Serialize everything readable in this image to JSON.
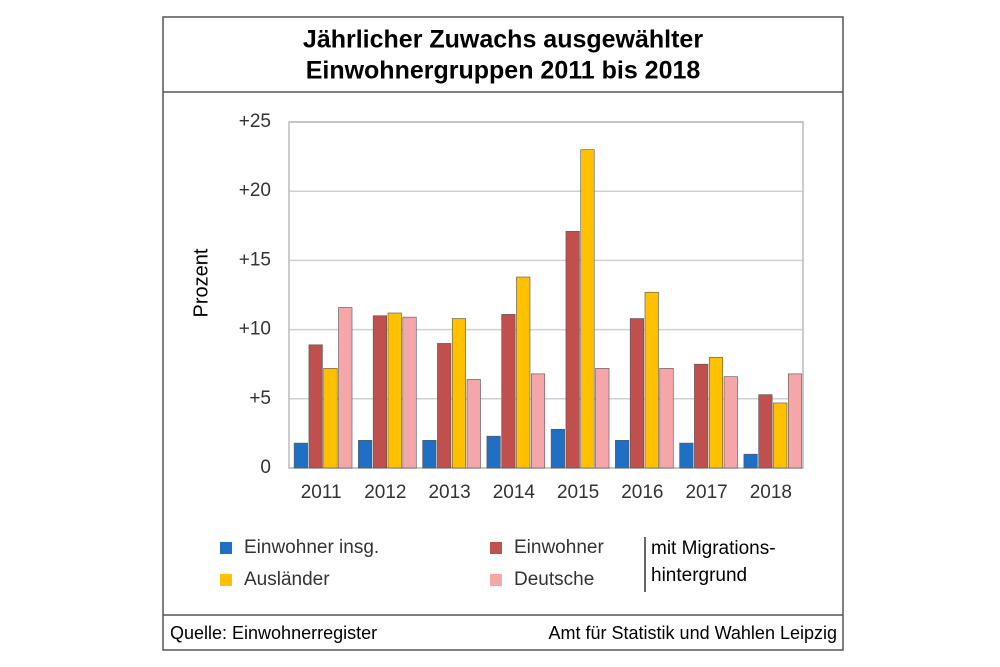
{
  "chart_data": {
    "type": "bar",
    "title": [
      "Jährlicher Zuwachs ausgewählter",
      "Einwohnergruppen 2011 bis 2018"
    ],
    "y_label": "Prozent",
    "categories": [
      "2011",
      "2012",
      "2013",
      "2014",
      "2015",
      "2016",
      "2017",
      "2018"
    ],
    "series": [
      {
        "name": "Einwohner insg.",
        "color": "#1f6fc5",
        "values": [
          1.8,
          2.0,
          2.0,
          2.3,
          2.8,
          2.0,
          1.8,
          1.0
        ]
      },
      {
        "name": "Einwohner",
        "color": "#c0504d",
        "values": [
          8.9,
          11.0,
          9.0,
          11.1,
          17.1,
          10.8,
          7.5,
          5.3
        ]
      },
      {
        "name": "Ausländer",
        "color": "#ffc000",
        "values": [
          7.2,
          11.2,
          10.8,
          13.8,
          23.0,
          12.7,
          8.0,
          4.7
        ]
      },
      {
        "name": "Deutsche",
        "color": "#f4a6a8",
        "values": [
          11.6,
          10.9,
          6.4,
          6.8,
          7.2,
          7.2,
          6.6,
          6.8
        ]
      }
    ],
    "legend_note": [
      "mit Migrations-",
      "hintergrund"
    ],
    "ylim": [
      0,
      25
    ],
    "yticks": [
      0,
      {
        "value": 5,
        "label": "+5"
      },
      {
        "value": 10,
        "label": "+10"
      },
      {
        "value": 15,
        "label": "+15"
      },
      {
        "value": 20,
        "label": "+20"
      },
      {
        "value": 25,
        "label": "+25"
      }
    ],
    "grid": true,
    "source": "Quelle: Einwohnerregister",
    "credit": "Amt für Statistik und Wahlen Leipzig"
  }
}
